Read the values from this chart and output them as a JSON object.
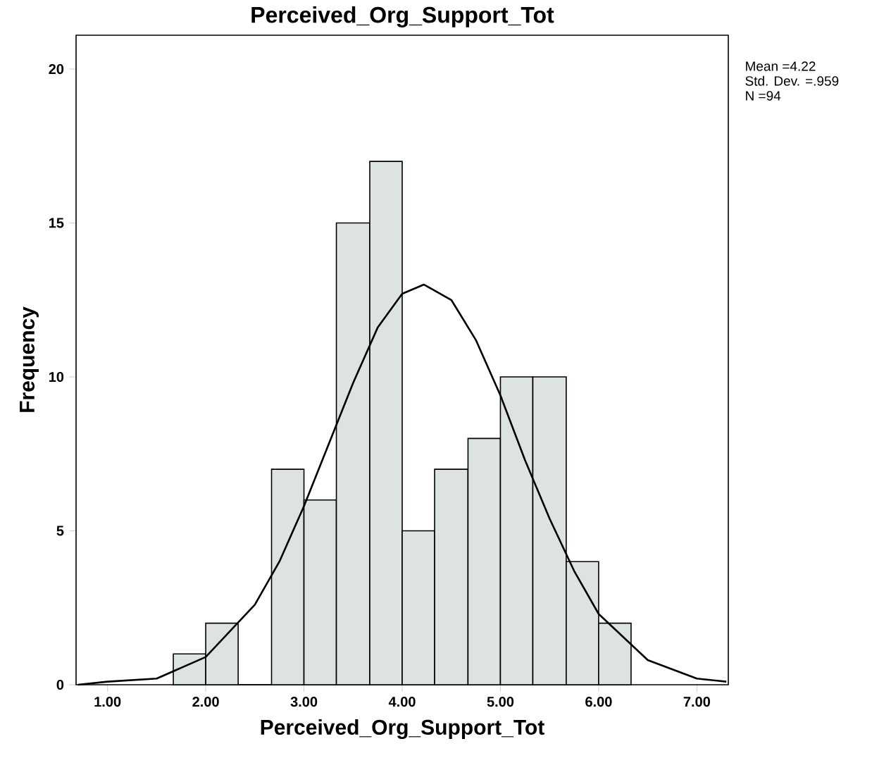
{
  "chart_data": {
    "type": "histogram",
    "title": "Perceived_Org_Support_Tot",
    "xlabel": "Perceived_Org_Support_Tot",
    "ylabel": "Frequency",
    "bins": [
      1.67,
      2.0,
      2.33,
      2.67,
      3.0,
      3.33,
      3.67,
      4.0,
      4.33,
      4.67,
      5.0,
      5.33,
      5.67,
      6.0,
      6.33
    ],
    "values": [
      1,
      2,
      0,
      7,
      6,
      15,
      17,
      5,
      7,
      8,
      10,
      10,
      4,
      2
    ],
    "color": "#dde3e0",
    "series": [
      {
        "type": "line",
        "color": "#000000",
        "x": [
          0.7,
          1.0,
          1.5,
          2.0,
          2.5,
          2.75,
          3.0,
          3.25,
          3.5,
          3.75,
          4.0,
          4.22,
          4.5,
          4.75,
          5.0,
          5.25,
          5.5,
          5.75,
          6.0,
          6.5,
          7.0,
          7.3
        ],
        "values": [
          0.0,
          0.1,
          0.2,
          0.9,
          2.6,
          4.0,
          5.8,
          7.8,
          9.8,
          11.6,
          12.7,
          13.0,
          12.5,
          11.2,
          9.4,
          7.3,
          5.4,
          3.7,
          2.3,
          0.8,
          0.2,
          0.1
        ]
      }
    ],
    "xlim": [
      0.68,
      7.32
    ],
    "ylim": [
      0,
      21.1
    ],
    "xticks": [
      {
        "value": 1,
        "label": "1.00"
      },
      {
        "value": 2,
        "label": "2.00"
      },
      {
        "value": 3,
        "label": "3.00"
      },
      {
        "value": 4,
        "label": "4.00"
      },
      {
        "value": 5,
        "label": "5.00"
      },
      {
        "value": 6,
        "label": "6.00"
      },
      {
        "value": 7,
        "label": "7.00"
      }
    ],
    "yticks": [
      0,
      5,
      10,
      15,
      20
    ],
    "annotations": [
      "Mean =4.22",
      "Std. Dev. =.959",
      "N =94"
    ]
  }
}
